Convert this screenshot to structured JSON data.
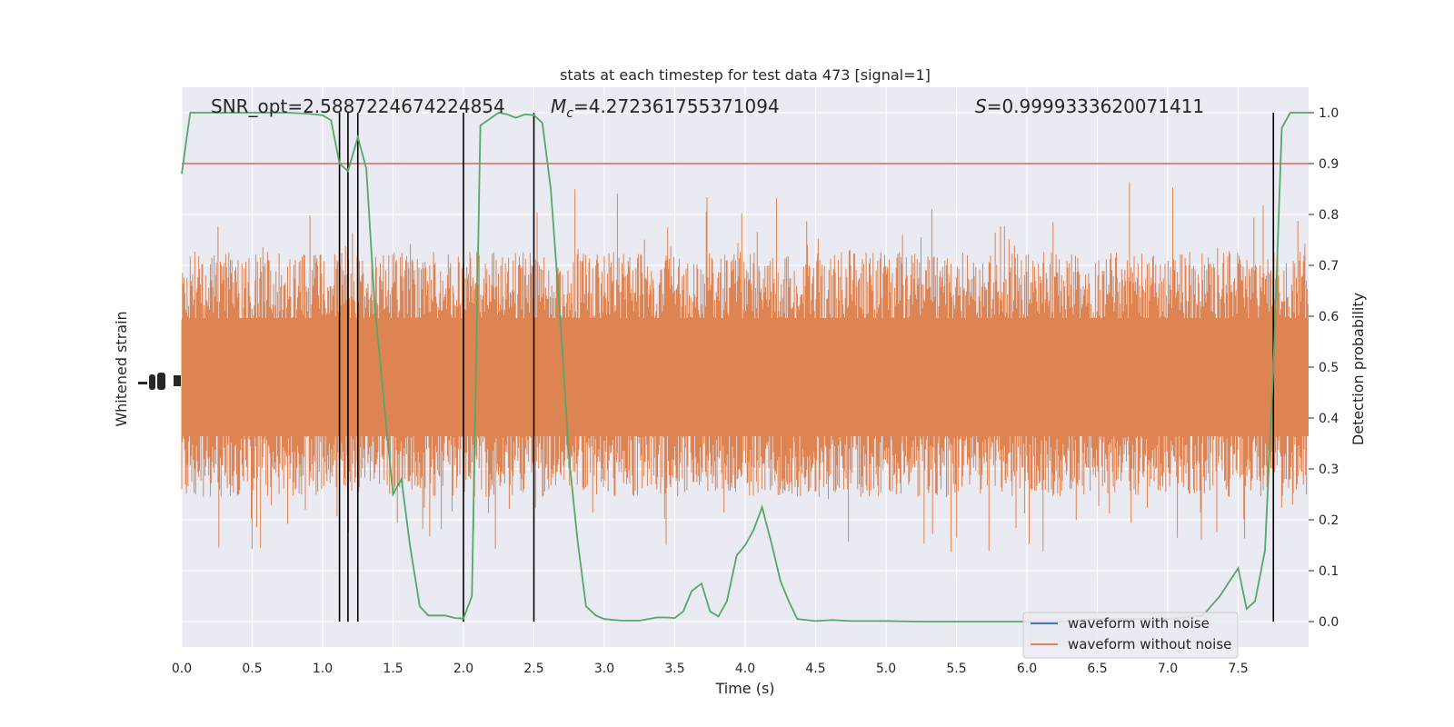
{
  "chart_data": {
    "type": "line",
    "title": "stats at each timestep for test data 473 [signal=1]",
    "xlabel": "Time (s)",
    "ylabel_left": "Whitened strain",
    "ylabel_right": "Detection probability",
    "xlim": [
      0,
      8
    ],
    "ylim_right": [
      -0.05,
      1.05
    ],
    "x_ticks": [
      "0.0",
      "0.5",
      "1.0",
      "1.5",
      "2.0",
      "2.5",
      "3.0",
      "3.5",
      "4.0",
      "4.5",
      "5.0",
      "5.5",
      "6.0",
      "6.5",
      "7.0",
      "7.5"
    ],
    "y_ticks_right": [
      "0.0",
      "0.1",
      "0.2",
      "0.3",
      "0.4",
      "0.5",
      "0.6",
      "0.7",
      "0.8",
      "0.9",
      "1.0"
    ],
    "annotations": {
      "snr": "SNR_opt=2.5887224674224854",
      "mc_symbol": "M",
      "mc_sub": "c",
      "mc_value": "=4.272361755371094",
      "s_symbol": "S",
      "s_value": "=0.9999333620071411"
    },
    "threshold": 0.9,
    "vertical_lines_x": [
      1.12,
      1.18,
      1.25,
      2.0,
      2.5,
      7.75
    ],
    "legend": {
      "placement": "lower-right",
      "entries": [
        {
          "label": "waveform with noise",
          "color": "#4c72b0"
        },
        {
          "label": "waveform without noise",
          "color": "#dd8452"
        }
      ]
    },
    "series": [
      {
        "name": "waveform with noise",
        "color": "#4c72b0",
        "values": []
      },
      {
        "name": "waveform without noise",
        "color": "#dd8452",
        "values": []
      },
      {
        "color": "#55a868",
        "x": [
          0.0,
          0.06,
          0.12,
          0.25,
          0.5,
          0.75,
          0.9,
          1.0,
          1.06,
          1.12,
          1.18,
          1.25,
          1.31,
          1.37,
          1.44,
          1.5,
          1.56,
          1.62,
          1.69,
          1.75,
          1.87,
          1.94,
          2.0,
          2.06,
          2.12,
          2.25,
          2.31,
          2.37,
          2.44,
          2.5,
          2.56,
          2.62,
          2.69,
          2.75,
          2.81,
          2.87,
          2.94,
          3.0,
          3.12,
          3.25,
          3.31,
          3.37,
          3.44,
          3.5,
          3.56,
          3.62,
          3.69,
          3.75,
          3.81,
          3.87,
          3.94,
          4.0,
          4.06,
          4.12,
          4.19,
          4.25,
          4.31,
          4.37,
          4.5,
          4.62,
          4.75,
          5.0,
          5.25,
          5.5,
          5.75,
          6.0,
          6.25,
          6.5,
          7.0,
          7.25,
          7.37,
          7.5,
          7.56,
          7.62,
          7.69,
          7.75,
          7.81,
          7.87,
          7.94,
          8.0
        ],
        "values": [
          0.88,
          1.0,
          1.0,
          1.0,
          1.0,
          1.0,
          0.998,
          0.995,
          0.985,
          0.9,
          0.885,
          0.952,
          0.89,
          0.62,
          0.42,
          0.25,
          0.28,
          0.15,
          0.03,
          0.012,
          0.012,
          0.007,
          0.006,
          0.05,
          0.975,
          1.0,
          0.997,
          0.99,
          0.997,
          0.995,
          0.98,
          0.85,
          0.58,
          0.32,
          0.16,
          0.03,
          0.012,
          0.005,
          0.002,
          0.002,
          0.005,
          0.008,
          0.008,
          0.007,
          0.02,
          0.06,
          0.075,
          0.02,
          0.01,
          0.04,
          0.13,
          0.15,
          0.18,
          0.225,
          0.15,
          0.08,
          0.04,
          0.005,
          0.001,
          0.003,
          0.001,
          0.001,
          0.0,
          0.0,
          0.0,
          0.0,
          0.0,
          0.005,
          0.005,
          0.012,
          0.05,
          0.105,
          0.025,
          0.04,
          0.14,
          0.5,
          0.97,
          1.0,
          1.0,
          1.0
        ]
      }
    ]
  }
}
